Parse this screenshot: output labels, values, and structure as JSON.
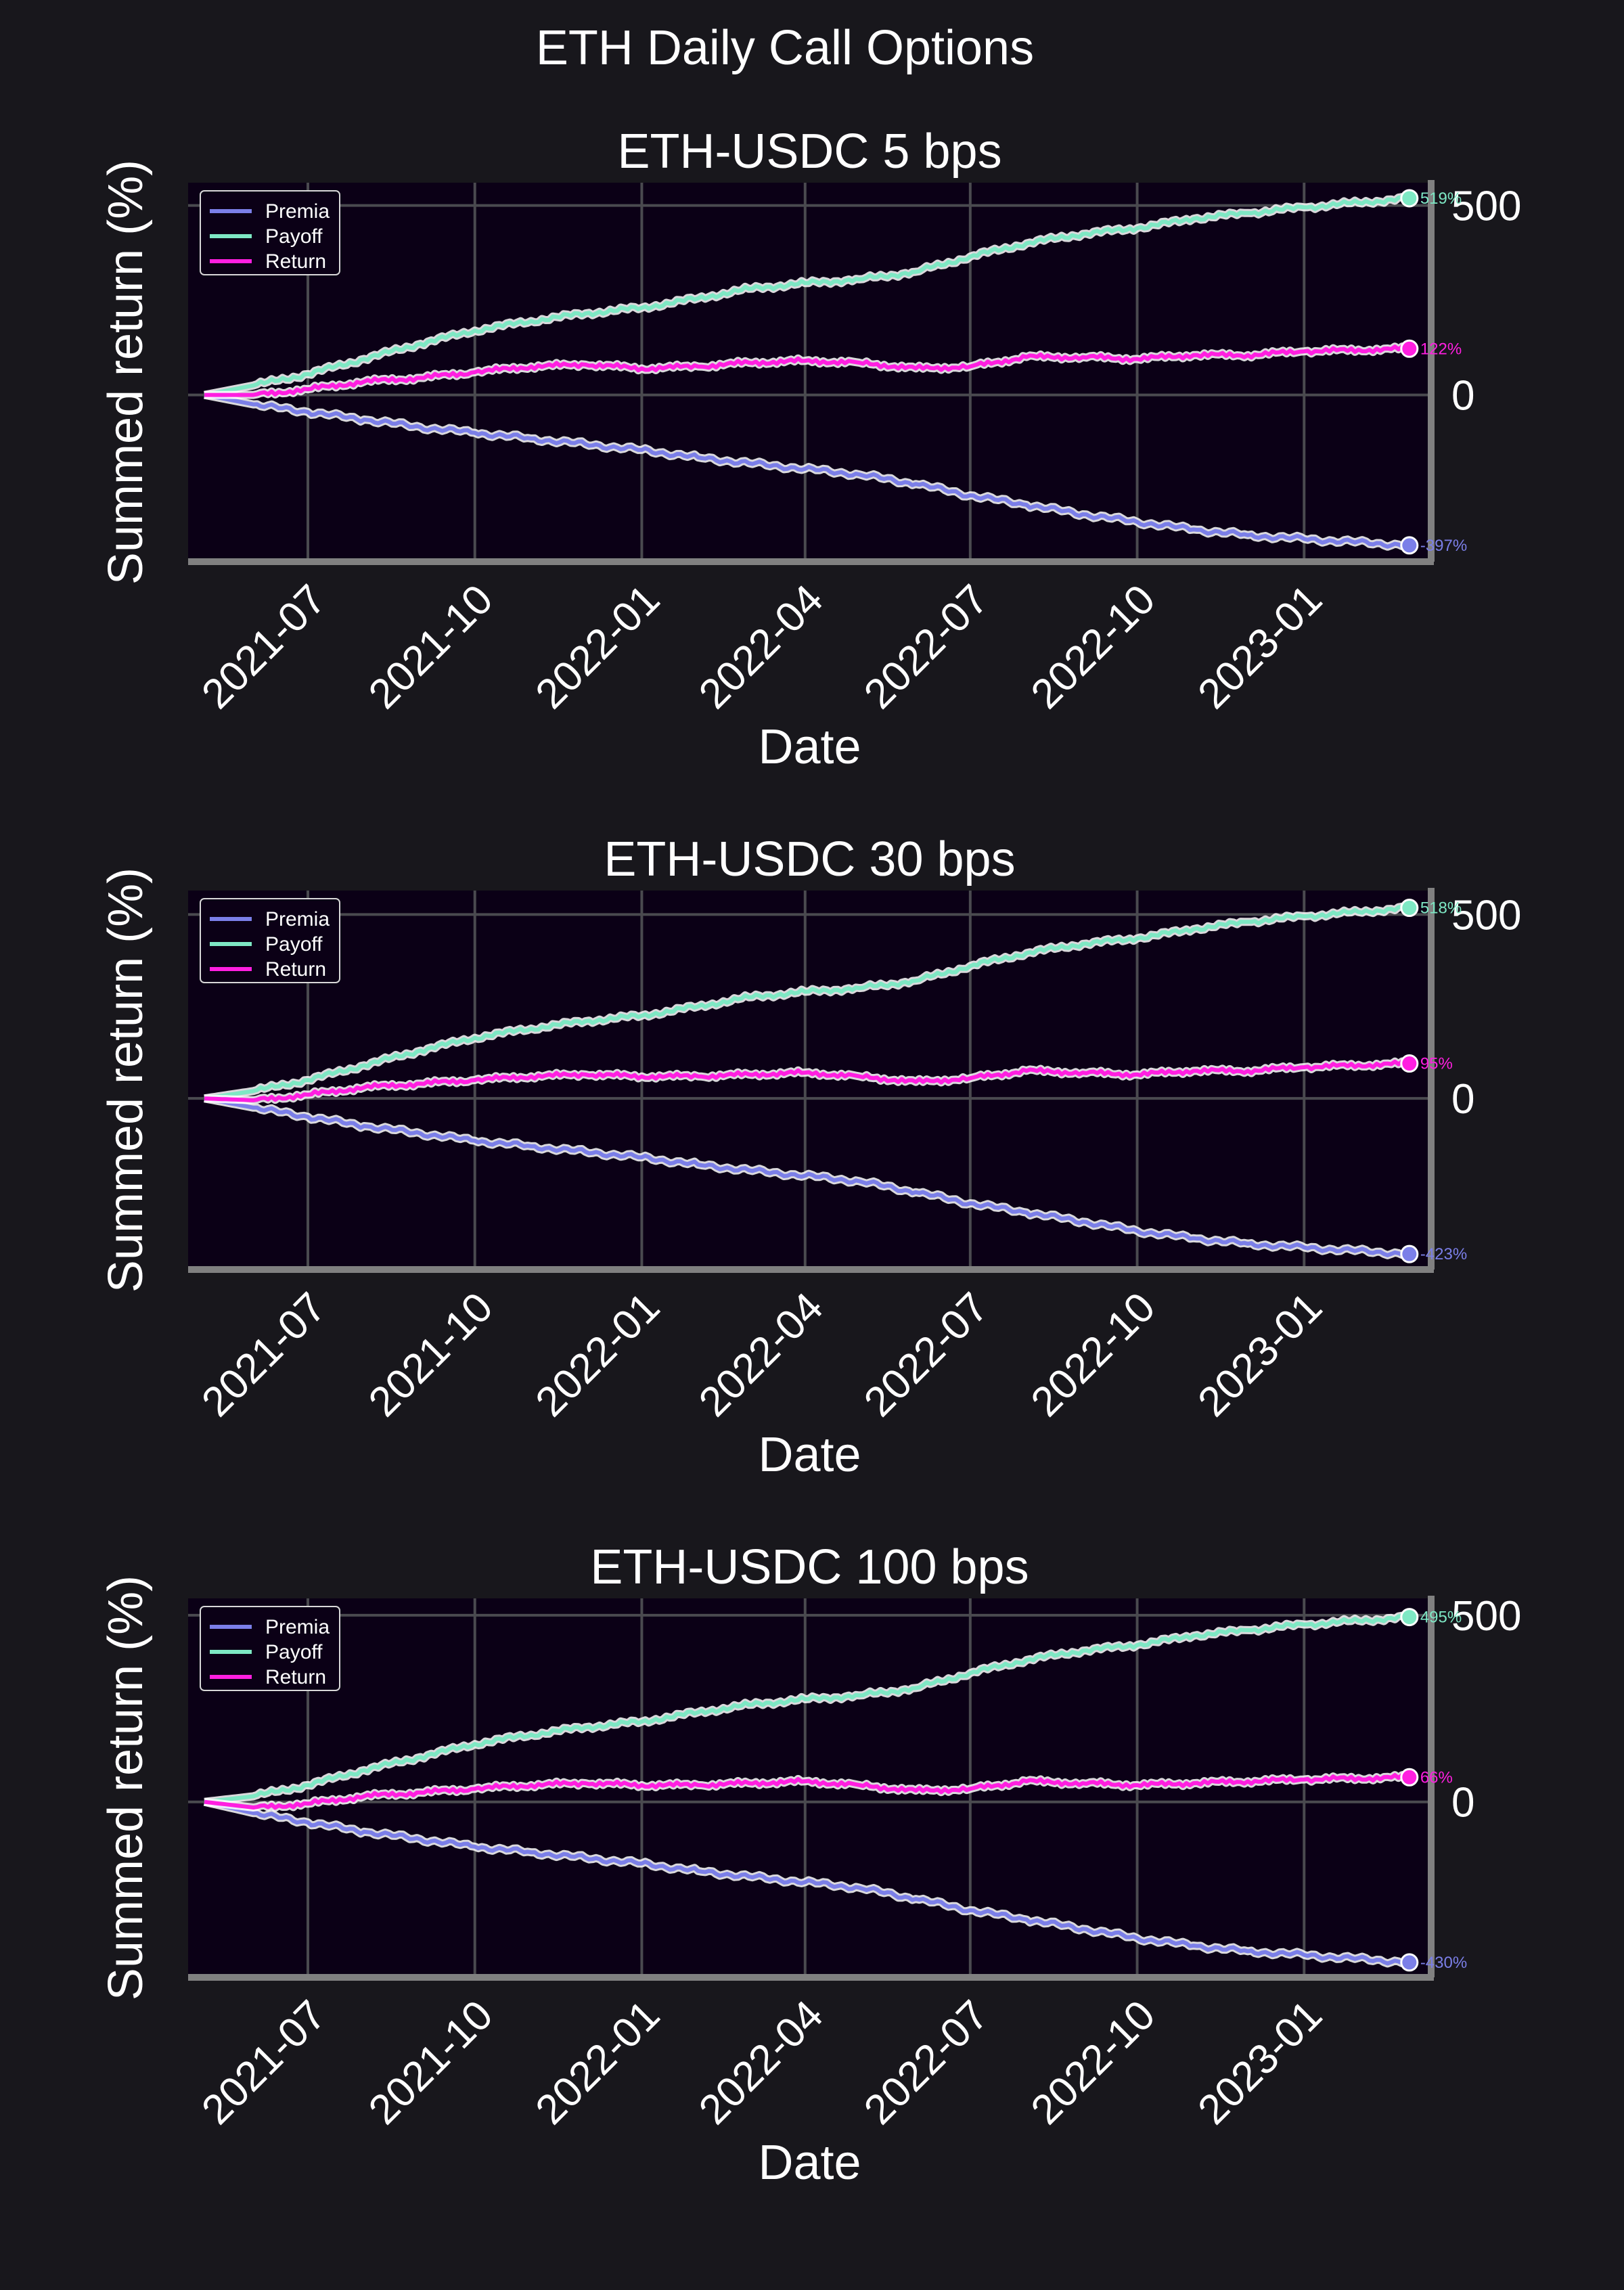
{
  "figure": {
    "title": "ETH Daily Call Options",
    "background": "#18171c",
    "plot_background": "#0b0016",
    "grid_color": "#4a4a4f",
    "spine_color": "#808080"
  },
  "chart_data": [
    {
      "type": "line",
      "title": "ETH-USDC 5 bps",
      "xlabel": "Date",
      "ylabel": "Summed return (%)",
      "x_range": [
        "2021-05-05",
        "2023-02-28"
      ],
      "xlim": [
        "2021-04-26",
        "2023-03-12"
      ],
      "ylim": [
        -440,
        560
      ],
      "x_ticks": [
        "2021-07",
        "2021-10",
        "2022-01",
        "2022-04",
        "2022-07",
        "2022-10",
        "2023-01"
      ],
      "y_ticks": [
        0,
        500
      ],
      "y_axis_side": "right",
      "grid": true,
      "legend_position": "upper left",
      "series": [
        {
          "name": "Premia",
          "color": "#7b7fe8",
          "end_label": "-397%",
          "points": [
            [
              "2021-05-05",
              0
            ],
            [
              "2021-06-01",
              -25
            ],
            [
              "2021-07-01",
              -45
            ],
            [
              "2021-08-01",
              -65
            ],
            [
              "2021-09-01",
              -85
            ],
            [
              "2021-10-01",
              -100
            ],
            [
              "2021-11-01",
              -115
            ],
            [
              "2021-12-01",
              -130
            ],
            [
              "2022-01-01",
              -145
            ],
            [
              "2022-02-01",
              -165
            ],
            [
              "2022-03-01",
              -180
            ],
            [
              "2022-04-01",
              -195
            ],
            [
              "2022-05-01",
              -210
            ],
            [
              "2022-06-01",
              -235
            ],
            [
              "2022-07-01",
              -265
            ],
            [
              "2022-08-01",
              -290
            ],
            [
              "2022-09-01",
              -315
            ],
            [
              "2022-10-01",
              -335
            ],
            [
              "2022-11-01",
              -355
            ],
            [
              "2022-12-01",
              -370
            ],
            [
              "2023-01-01",
              -380
            ],
            [
              "2023-02-28",
              -397
            ]
          ]
        },
        {
          "name": "Payoff",
          "color": "#7ee8c4",
          "end_label": "519%",
          "points": [
            [
              "2021-05-05",
              0
            ],
            [
              "2021-06-01",
              25
            ],
            [
              "2021-07-01",
              55
            ],
            [
              "2021-08-01",
              95
            ],
            [
              "2021-09-01",
              135
            ],
            [
              "2021-10-01",
              170
            ],
            [
              "2021-11-01",
              195
            ],
            [
              "2021-12-01",
              215
            ],
            [
              "2022-01-01",
              230
            ],
            [
              "2022-02-01",
              255
            ],
            [
              "2022-03-01",
              280
            ],
            [
              "2022-04-01",
              295
            ],
            [
              "2022-05-01",
              305
            ],
            [
              "2022-06-01",
              325
            ],
            [
              "2022-07-01",
              365
            ],
            [
              "2022-08-01",
              400
            ],
            [
              "2022-09-01",
              425
            ],
            [
              "2022-10-01",
              440
            ],
            [
              "2022-11-01",
              465
            ],
            [
              "2022-12-01",
              480
            ],
            [
              "2023-01-01",
              495
            ],
            [
              "2023-02-28",
              519
            ]
          ]
        },
        {
          "name": "Return",
          "color": "#ff1fe0",
          "end_label": "122%",
          "points": [
            [
              "2021-05-05",
              0
            ],
            [
              "2021-06-01",
              0
            ],
            [
              "2021-07-01",
              15
            ],
            [
              "2021-08-01",
              35
            ],
            [
              "2021-09-01",
              45
            ],
            [
              "2021-10-01",
              60
            ],
            [
              "2021-11-01",
              75
            ],
            [
              "2021-12-01",
              80
            ],
            [
              "2022-01-01",
              70
            ],
            [
              "2022-02-01",
              75
            ],
            [
              "2022-03-01",
              85
            ],
            [
              "2022-04-01",
              90
            ],
            [
              "2022-05-01",
              85
            ],
            [
              "2022-06-01",
              70
            ],
            [
              "2022-07-01",
              75
            ],
            [
              "2022-08-01",
              100
            ],
            [
              "2022-09-01",
              100
            ],
            [
              "2022-10-01",
              95
            ],
            [
              "2022-11-01",
              105
            ],
            [
              "2022-12-01",
              105
            ],
            [
              "2023-01-01",
              115
            ],
            [
              "2023-02-28",
              122
            ]
          ]
        }
      ]
    },
    {
      "type": "line",
      "title": "ETH-USDC 30 bps",
      "xlabel": "Date",
      "ylabel": "Summed return (%)",
      "x_range": [
        "2021-05-05",
        "2023-02-28"
      ],
      "xlim": [
        "2021-04-26",
        "2023-03-12"
      ],
      "ylim": [
        -465,
        565
      ],
      "x_ticks": [
        "2021-07",
        "2021-10",
        "2022-01",
        "2022-04",
        "2022-07",
        "2022-10",
        "2023-01"
      ],
      "y_ticks": [
        0,
        500
      ],
      "y_axis_side": "right",
      "grid": true,
      "legend_position": "upper left",
      "series": [
        {
          "name": "Premia",
          "color": "#7b7fe8",
          "end_label": "-423%",
          "points": [
            [
              "2021-05-05",
              0
            ],
            [
              "2021-06-01",
              -25
            ],
            [
              "2021-07-01",
              -50
            ],
            [
              "2021-08-01",
              -75
            ],
            [
              "2021-09-01",
              -95
            ],
            [
              "2021-10-01",
              -115
            ],
            [
              "2021-11-01",
              -130
            ],
            [
              "2021-12-01",
              -145
            ],
            [
              "2022-01-01",
              -160
            ],
            [
              "2022-02-01",
              -180
            ],
            [
              "2022-03-01",
              -195
            ],
            [
              "2022-04-01",
              -210
            ],
            [
              "2022-05-01",
              -225
            ],
            [
              "2022-06-01",
              -255
            ],
            [
              "2022-07-01",
              -285
            ],
            [
              "2022-08-01",
              -310
            ],
            [
              "2022-09-01",
              -335
            ],
            [
              "2022-10-01",
              -360
            ],
            [
              "2022-11-01",
              -380
            ],
            [
              "2022-12-01",
              -395
            ],
            [
              "2023-01-01",
              -405
            ],
            [
              "2023-02-28",
              -423
            ]
          ]
        },
        {
          "name": "Payoff",
          "color": "#7ee8c4",
          "end_label": "518%",
          "points": [
            [
              "2021-05-05",
              0
            ],
            [
              "2021-06-01",
              20
            ],
            [
              "2021-07-01",
              50
            ],
            [
              "2021-08-01",
              90
            ],
            [
              "2021-09-01",
              130
            ],
            [
              "2021-10-01",
              165
            ],
            [
              "2021-11-01",
              190
            ],
            [
              "2021-12-01",
              210
            ],
            [
              "2022-01-01",
              225
            ],
            [
              "2022-02-01",
              250
            ],
            [
              "2022-03-01",
              275
            ],
            [
              "2022-04-01",
              290
            ],
            [
              "2022-05-01",
              300
            ],
            [
              "2022-06-01",
              320
            ],
            [
              "2022-07-01",
              360
            ],
            [
              "2022-08-01",
              395
            ],
            [
              "2022-09-01",
              420
            ],
            [
              "2022-10-01",
              435
            ],
            [
              "2022-11-01",
              460
            ],
            [
              "2022-12-01",
              480
            ],
            [
              "2023-01-01",
              495
            ],
            [
              "2023-02-28",
              518
            ]
          ]
        },
        {
          "name": "Return",
          "color": "#ff1fe0",
          "end_label": "95%",
          "points": [
            [
              "2021-05-05",
              0
            ],
            [
              "2021-06-01",
              -5
            ],
            [
              "2021-07-01",
              10
            ],
            [
              "2021-08-01",
              30
            ],
            [
              "2021-09-01",
              40
            ],
            [
              "2021-10-01",
              50
            ],
            [
              "2021-11-01",
              60
            ],
            [
              "2021-12-01",
              65
            ],
            [
              "2022-01-01",
              60
            ],
            [
              "2022-02-01",
              60
            ],
            [
              "2022-03-01",
              65
            ],
            [
              "2022-04-01",
              70
            ],
            [
              "2022-05-01",
              60
            ],
            [
              "2022-06-01",
              45
            ],
            [
              "2022-07-01",
              55
            ],
            [
              "2022-08-01",
              75
            ],
            [
              "2022-09-01",
              70
            ],
            [
              "2022-10-01",
              65
            ],
            [
              "2022-11-01",
              75
            ],
            [
              "2022-12-01",
              75
            ],
            [
              "2023-01-01",
              85
            ],
            [
              "2023-02-28",
              95
            ]
          ]
        }
      ]
    },
    {
      "type": "line",
      "title": "ETH-USDC 100 bps",
      "xlabel": "Date",
      "ylabel": "Summed return (%)",
      "x_range": [
        "2021-05-05",
        "2023-02-28"
      ],
      "xlim": [
        "2021-04-26",
        "2023-03-12"
      ],
      "ylim": [
        -470,
        545
      ],
      "x_ticks": [
        "2021-07",
        "2021-10",
        "2022-01",
        "2022-04",
        "2022-07",
        "2022-10",
        "2023-01"
      ],
      "y_ticks": [
        0,
        500
      ],
      "y_axis_side": "right",
      "grid": true,
      "legend_position": "upper left",
      "series": [
        {
          "name": "Premia",
          "color": "#7b7fe8",
          "end_label": "-430%",
          "points": [
            [
              "2021-05-05",
              0
            ],
            [
              "2021-06-01",
              -30
            ],
            [
              "2021-07-01",
              -55
            ],
            [
              "2021-08-01",
              -80
            ],
            [
              "2021-09-01",
              -100
            ],
            [
              "2021-10-01",
              -120
            ],
            [
              "2021-11-01",
              -135
            ],
            [
              "2021-12-01",
              -150
            ],
            [
              "2022-01-01",
              -165
            ],
            [
              "2022-02-01",
              -185
            ],
            [
              "2022-03-01",
              -200
            ],
            [
              "2022-04-01",
              -215
            ],
            [
              "2022-05-01",
              -230
            ],
            [
              "2022-06-01",
              -260
            ],
            [
              "2022-07-01",
              -290
            ],
            [
              "2022-08-01",
              -315
            ],
            [
              "2022-09-01",
              -340
            ],
            [
              "2022-10-01",
              -365
            ],
            [
              "2022-11-01",
              -385
            ],
            [
              "2022-12-01",
              -400
            ],
            [
              "2023-01-01",
              -410
            ],
            [
              "2023-02-28",
              -430
            ]
          ]
        },
        {
          "name": "Payoff",
          "color": "#7ee8c4",
          "end_label": "495%",
          "points": [
            [
              "2021-05-05",
              0
            ],
            [
              "2021-06-01",
              15
            ],
            [
              "2021-07-01",
              45
            ],
            [
              "2021-08-01",
              85
            ],
            [
              "2021-09-01",
              120
            ],
            [
              "2021-10-01",
              155
            ],
            [
              "2021-11-01",
              180
            ],
            [
              "2021-12-01",
              200
            ],
            [
              "2022-01-01",
              215
            ],
            [
              "2022-02-01",
              240
            ],
            [
              "2022-03-01",
              260
            ],
            [
              "2022-04-01",
              275
            ],
            [
              "2022-05-01",
              285
            ],
            [
              "2022-06-01",
              305
            ],
            [
              "2022-07-01",
              345
            ],
            [
              "2022-08-01",
              380
            ],
            [
              "2022-09-01",
              405
            ],
            [
              "2022-10-01",
              420
            ],
            [
              "2022-11-01",
              445
            ],
            [
              "2022-12-01",
              460
            ],
            [
              "2023-01-01",
              475
            ],
            [
              "2023-02-28",
              495
            ]
          ]
        },
        {
          "name": "Return",
          "color": "#ff1fe0",
          "end_label": "66%",
          "points": [
            [
              "2021-05-05",
              0
            ],
            [
              "2021-06-01",
              -15
            ],
            [
              "2021-07-01",
              -5
            ],
            [
              "2021-08-01",
              15
            ],
            [
              "2021-09-01",
              25
            ],
            [
              "2021-10-01",
              35
            ],
            [
              "2021-11-01",
              45
            ],
            [
              "2021-12-01",
              50
            ],
            [
              "2022-01-01",
              45
            ],
            [
              "2022-02-01",
              45
            ],
            [
              "2022-03-01",
              50
            ],
            [
              "2022-04-01",
              55
            ],
            [
              "2022-05-01",
              45
            ],
            [
              "2022-06-01",
              30
            ],
            [
              "2022-07-01",
              35
            ],
            [
              "2022-08-01",
              55
            ],
            [
              "2022-09-01",
              50
            ],
            [
              "2022-10-01",
              45
            ],
            [
              "2022-11-01",
              50
            ],
            [
              "2022-12-01",
              55
            ],
            [
              "2023-01-01",
              60
            ],
            [
              "2023-02-28",
              66
            ]
          ]
        }
      ]
    }
  ]
}
